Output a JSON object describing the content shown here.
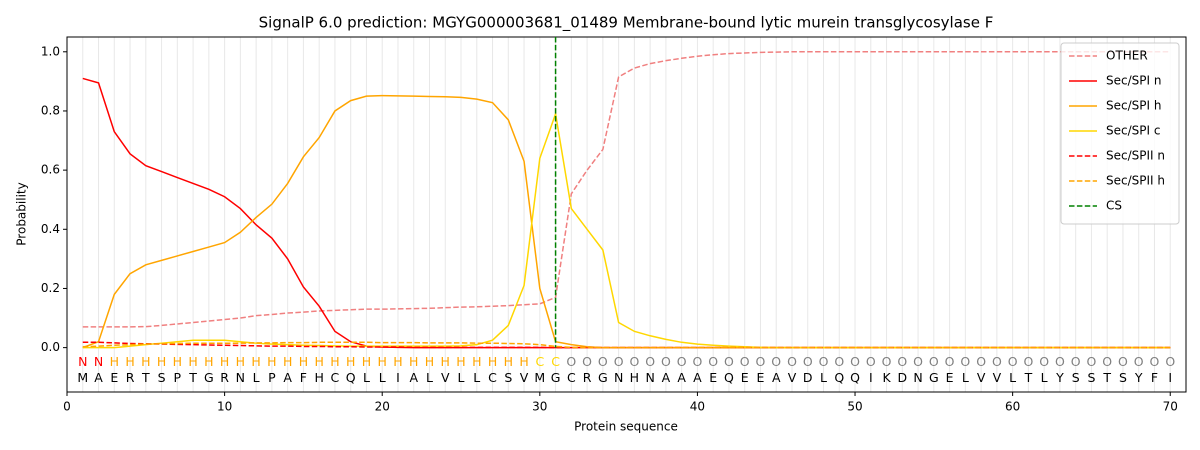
{
  "chart_data": {
    "type": "line",
    "title": "SignalP 6.0 prediction: MGYG000003681_01489 Membrane-bound lytic murein transglycosylase F",
    "xlabel": "Protein sequence",
    "ylabel": "Probability",
    "xlim": [
      0,
      71
    ],
    "ylim": [
      -0.15,
      1.05
    ],
    "xticks": [
      0,
      10,
      20,
      30,
      40,
      50,
      60,
      70
    ],
    "yticks": [
      {
        "value": 0,
        "label": "0.0"
      },
      {
        "value": 0.2,
        "label": "0.2"
      },
      {
        "value": 0.4,
        "label": "0.4"
      },
      {
        "value": 0.6,
        "label": "0.6"
      },
      {
        "value": 0.8,
        "label": "0.8"
      },
      {
        "value": 1.0,
        "label": "1.0"
      }
    ],
    "legend": "upper right",
    "x": [
      1,
      2,
      3,
      4,
      5,
      6,
      7,
      8,
      9,
      10,
      11,
      12,
      13,
      14,
      15,
      16,
      17,
      18,
      19,
      20,
      21,
      22,
      23,
      24,
      25,
      26,
      27,
      28,
      29,
      30,
      31,
      32,
      33,
      34,
      35,
      36,
      37,
      38,
      39,
      40,
      41,
      42,
      43,
      44,
      45,
      46,
      47,
      48,
      49,
      50,
      51,
      52,
      53,
      54,
      55,
      56,
      57,
      58,
      59,
      60,
      61,
      62,
      63,
      64,
      65,
      66,
      67,
      68,
      69,
      70
    ],
    "sequence": [
      "M",
      "A",
      "E",
      "R",
      "T",
      "S",
      "P",
      "T",
      "G",
      "R",
      "N",
      "L",
      "P",
      "A",
      "F",
      "H",
      "C",
      "Q",
      "L",
      "L",
      "I",
      "A",
      "L",
      "V",
      "L",
      "L",
      "C",
      "S",
      "V",
      "M",
      "G",
      "C",
      "R",
      "G",
      "N",
      "H",
      "N",
      "A",
      "A",
      "A",
      "E",
      "Q",
      "E",
      "E",
      "A",
      "V",
      "D",
      "L",
      "Q",
      "Q",
      "I",
      "K",
      "D",
      "N",
      "G",
      "E",
      "L",
      "V",
      "V",
      "L",
      "T",
      "L",
      "Y",
      "S",
      "S",
      "T",
      "S",
      "Y",
      "F",
      "I"
    ],
    "labels": [
      "N",
      "N",
      "H",
      "H",
      "H",
      "H",
      "H",
      "H",
      "H",
      "H",
      "H",
      "H",
      "H",
      "H",
      "H",
      "H",
      "H",
      "H",
      "H",
      "H",
      "H",
      "H",
      "H",
      "H",
      "H",
      "H",
      "H",
      "H",
      "H",
      "C",
      "C",
      "O",
      "O",
      "O",
      "O",
      "O",
      "O",
      "O",
      "O",
      "O",
      "O",
      "O",
      "O",
      "O",
      "O",
      "O",
      "O",
      "O",
      "O",
      "O",
      "O",
      "O",
      "O",
      "O",
      "O",
      "O",
      "O",
      "O",
      "O",
      "O",
      "O",
      "O",
      "O",
      "O",
      "O",
      "O",
      "O",
      "O",
      "O",
      "O"
    ],
    "label_colors": {
      "N": "#ff0000",
      "H": "#ffa500",
      "C": "#ffd700",
      "O": "#808080"
    },
    "series": [
      {
        "name": "OTHER",
        "color": "#f08080",
        "dash": true,
        "values": [
          0.07,
          0.07,
          0.07,
          0.07,
          0.071,
          0.075,
          0.08,
          0.085,
          0.09,
          0.095,
          0.1,
          0.108,
          0.112,
          0.117,
          0.12,
          0.124,
          0.126,
          0.128,
          0.13,
          0.13,
          0.131,
          0.132,
          0.133,
          0.135,
          0.137,
          0.138,
          0.14,
          0.142,
          0.145,
          0.148,
          0.17,
          0.52,
          0.6,
          0.67,
          0.915,
          0.945,
          0.96,
          0.97,
          0.978,
          0.985,
          0.99,
          0.994,
          0.996,
          0.998,
          0.999,
          1,
          1,
          1,
          1,
          1,
          1,
          1,
          1,
          1,
          1,
          1,
          1,
          1,
          1,
          1,
          1,
          1,
          1,
          1,
          1,
          1,
          1,
          1,
          1,
          1
        ]
      },
      {
        "name": "Sec/SPI n",
        "color": "#ff0000",
        "dash": false,
        "values": [
          0.91,
          0.895,
          0.73,
          0.655,
          0.615,
          0.595,
          0.575,
          0.555,
          0.535,
          0.51,
          0.47,
          0.415,
          0.37,
          0.3,
          0.205,
          0.14,
          0.055,
          0.02,
          0.005,
          0.002,
          0.001,
          0,
          0,
          0,
          0,
          0,
          0,
          0,
          0,
          0,
          0,
          0,
          0,
          0,
          0,
          0,
          0,
          0,
          0,
          0,
          0,
          0,
          0,
          0,
          0,
          0,
          0,
          0,
          0,
          0,
          0,
          0,
          0,
          0,
          0,
          0,
          0,
          0,
          0,
          0,
          0,
          0,
          0,
          0,
          0,
          0,
          0,
          0,
          0,
          0
        ]
      },
      {
        "name": "Sec/SPI h",
        "color": "#ffa500",
        "dash": false,
        "values": [
          0,
          0.02,
          0.18,
          0.25,
          0.28,
          0.295,
          0.31,
          0.325,
          0.34,
          0.355,
          0.39,
          0.44,
          0.485,
          0.555,
          0.645,
          0.71,
          0.8,
          0.835,
          0.85,
          0.852,
          0.851,
          0.85,
          0.849,
          0.848,
          0.846,
          0.84,
          0.828,
          0.77,
          0.63,
          0.2,
          0.02,
          0.01,
          0.003,
          0,
          0,
          0,
          0,
          0,
          0,
          0,
          0,
          0,
          0,
          0,
          0,
          0,
          0,
          0,
          0,
          0,
          0,
          0,
          0,
          0,
          0,
          0,
          0,
          0,
          0,
          0,
          0,
          0,
          0,
          0,
          0,
          0,
          0,
          0,
          0,
          0
        ]
      },
      {
        "name": "Sec/SPI c",
        "color": "#ffd700",
        "dash": false,
        "values": [
          0,
          0,
          0,
          0.005,
          0.01,
          0.015,
          0.02,
          0.025,
          0.025,
          0.025,
          0.02,
          0.015,
          0.012,
          0.01,
          0.008,
          0.007,
          0.006,
          0.005,
          0.005,
          0.005,
          0.005,
          0.005,
          0.005,
          0.005,
          0.006,
          0.01,
          0.025,
          0.075,
          0.21,
          0.64,
          0.79,
          0.47,
          0.4,
          0.33,
          0.085,
          0.055,
          0.04,
          0.028,
          0.018,
          0.012,
          0.008,
          0.005,
          0.003,
          0.001,
          0,
          0,
          0,
          0,
          0,
          0,
          0,
          0,
          0,
          0,
          0,
          0,
          0,
          0,
          0,
          0,
          0,
          0,
          0,
          0,
          0,
          0,
          0,
          0,
          0,
          0
        ]
      },
      {
        "name": "Sec/SPII n",
        "color": "#ff0000",
        "dash": true,
        "values": [
          0.018,
          0.018,
          0.016,
          0.014,
          0.013,
          0.012,
          0.011,
          0.01,
          0.009,
          0.008,
          0.007,
          0.006,
          0.005,
          0.005,
          0.004,
          0.004,
          0.003,
          0.003,
          0.002,
          0.002,
          0.002,
          0.001,
          0.001,
          0.001,
          0.001,
          0.001,
          0.001,
          0.001,
          0.001,
          0.001,
          0,
          0,
          0,
          0,
          0,
          0,
          0,
          0,
          0,
          0,
          0,
          0,
          0,
          0,
          0,
          0,
          0,
          0,
          0,
          0,
          0,
          0,
          0,
          0,
          0,
          0,
          0,
          0,
          0,
          0,
          0,
          0,
          0,
          0,
          0,
          0,
          0,
          0,
          0,
          0
        ]
      },
      {
        "name": "Sec/SPII h",
        "color": "#ffa500",
        "dash": true,
        "values": [
          0.003,
          0.005,
          0.008,
          0.01,
          0.012,
          0.013,
          0.014,
          0.015,
          0.015,
          0.015,
          0.015,
          0.016,
          0.016,
          0.017,
          0.017,
          0.018,
          0.018,
          0.018,
          0.018,
          0.017,
          0.017,
          0.017,
          0.016,
          0.016,
          0.016,
          0.015,
          0.015,
          0.014,
          0.013,
          0.01,
          0.004,
          0.001,
          0,
          0,
          0,
          0,
          0,
          0,
          0,
          0,
          0,
          0,
          0,
          0,
          0,
          0,
          0,
          0,
          0,
          0,
          0,
          0,
          0,
          0,
          0,
          0,
          0,
          0,
          0,
          0,
          0,
          0,
          0,
          0,
          0,
          0,
          0,
          0,
          0,
          0
        ]
      },
      {
        "name": "CS",
        "color": "#008000",
        "dash": true,
        "position": 31
      }
    ]
  }
}
